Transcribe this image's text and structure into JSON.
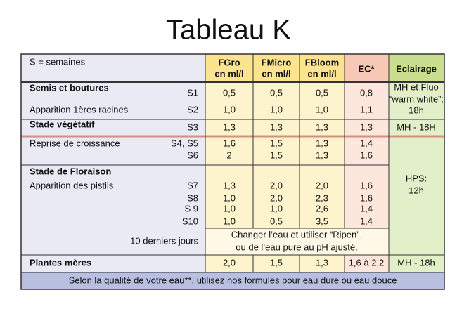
{
  "title": "Tableau K",
  "table": {
    "note": "S = semaines",
    "columns": [
      [
        "FGro",
        "en ml/l"
      ],
      [
        "FMicro",
        "en ml/l"
      ],
      [
        "FBloom",
        "en ml/l"
      ],
      [
        "EC*"
      ],
      [
        "Eclairage"
      ]
    ],
    "sections": [
      {
        "stage": "Semis et boutures",
        "rows": [
          {
            "week": "S1",
            "values": [
              "0,5",
              "0,5",
              "0,5",
              "0,8"
            ]
          },
          {
            "label": "Apparition 1ères racines",
            "week": "S2",
            "values": [
              "1,0",
              "1,0",
              "1,0",
              "1,1"
            ]
          }
        ],
        "lighting": [
          "MH et Fluo",
          "“warm white”:",
          "18h"
        ]
      },
      {
        "stage": "Stade végétatif",
        "rows": [
          {
            "week": "S3",
            "values": [
              "1,3",
              "1,3",
              "1,3",
              "1,3"
            ]
          }
        ],
        "lighting": [
          "MH - 18H"
        ]
      },
      {
        "rows": [
          {
            "label": "Reprise de croissance",
            "week": "S4, S5",
            "values": [
              "1,6",
              "1,5",
              "1,3",
              "1,4"
            ]
          },
          {
            "week": "S6",
            "values": [
              "2",
              "1,5",
              "1,3",
              "1,6"
            ]
          }
        ]
      },
      {
        "stage": "Stade de Floraison",
        "rows": [
          {
            "label": "Apparition des pistils",
            "week": "S7",
            "values": [
              "1,3",
              "2,0",
              "2,0",
              "1,6"
            ]
          },
          {
            "week": "S8",
            "values": [
              "1,0",
              "2,0",
              "2,3",
              "1,6"
            ]
          },
          {
            "week": "S 9",
            "values": [
              "1,0",
              "1,0",
              "2,6",
              "1,4"
            ]
          },
          {
            "week": "S10",
            "values": [
              "1,0",
              "0,5",
              "3,5",
              "1,4"
            ]
          }
        ],
        "note_label": "10 derniers jours",
        "note": [
          "Changer l’eau et utiliser “Ripen”,",
          "ou  de l’eau pure au pH ajusté."
        ],
        "lighting": [
          "HPS:",
          "12h"
        ]
      },
      {
        "stage": "Plantes mères",
        "rows": [
          {
            "values": [
              "2,0",
              "1,5",
              "1,3",
              "1,6 à 2,2"
            ]
          }
        ],
        "lighting": [
          "MH - 18h"
        ]
      }
    ],
    "footer": "Selon la qualité de votre eau**, utilisez nos formules pour eau dure ou eau douce"
  }
}
